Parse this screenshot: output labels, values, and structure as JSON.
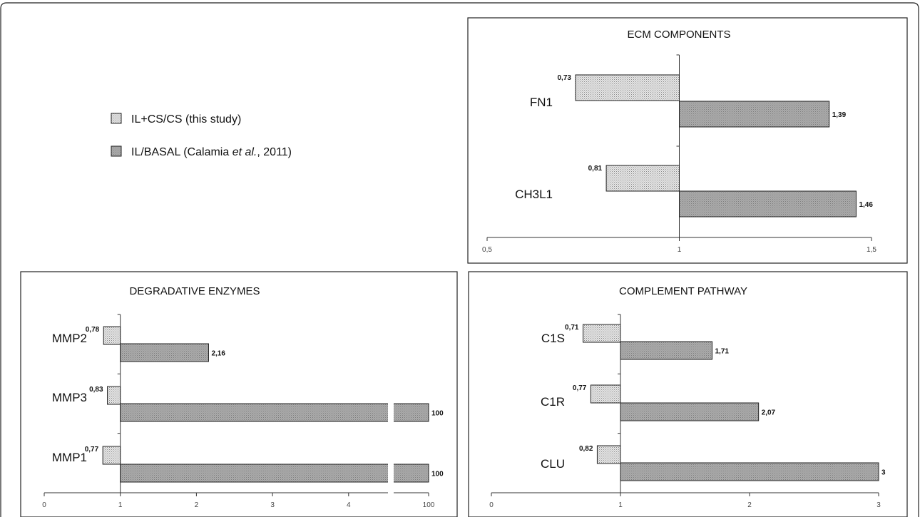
{
  "legend": {
    "items": [
      {
        "text_parts": [
          "IL+CS/CS (this study)"
        ],
        "fill": "light"
      },
      {
        "text_parts": [
          "IL/BASAL (Calamia ",
          "et al.",
          ", 2011)"
        ],
        "fill": "dark"
      }
    ]
  },
  "colors": {
    "light_fill": "#e2e2e2",
    "dark_fill": "#a9a9a9",
    "frame": "#222222"
  },
  "chart_data": [
    {
      "type": "bar",
      "orientation": "horizontal",
      "title": "ECM COMPONENTS",
      "categories": [
        "FN1",
        "CH3L1"
      ],
      "series": [
        {
          "name": "IL+CS/CS (this study)",
          "values": [
            0.73,
            0.81
          ],
          "labels": [
            "0,73",
            "0,81"
          ]
        },
        {
          "name": "IL/BASAL (Calamia et al., 2011)",
          "values": [
            1.39,
            1.46
          ],
          "labels": [
            "1,39",
            "1,46"
          ]
        }
      ],
      "baseline": 1,
      "xlim": [
        0.5,
        1.5
      ],
      "ticks": [
        0.5,
        1,
        1.5
      ],
      "tick_labels": [
        "0,5",
        "1",
        "1,5"
      ]
    },
    {
      "type": "bar",
      "orientation": "horizontal",
      "title": "DEGRADATIVE ENZYMES",
      "categories": [
        "MMP2",
        "MMP3",
        "MMP1"
      ],
      "series": [
        {
          "name": "IL+CS/CS (this study)",
          "values": [
            0.78,
            0.83,
            0.77
          ],
          "labels": [
            "0,78",
            "0,83",
            "0,77"
          ]
        },
        {
          "name": "IL/BASAL (Calamia et al., 2011)",
          "values": [
            2.16,
            100,
            100
          ],
          "labels": [
            "2,16",
            "100",
            "100"
          ]
        }
      ],
      "baseline": 1,
      "xlim": [
        0,
        100
      ],
      "axis_break": [
        4.5,
        100
      ],
      "ticks": [
        0,
        1,
        2,
        3,
        4,
        100
      ],
      "tick_labels": [
        "0",
        "1",
        "2",
        "3",
        "4",
        "100"
      ]
    },
    {
      "type": "bar",
      "orientation": "horizontal",
      "title": "COMPLEMENT PATHWAY",
      "categories": [
        "C1S",
        "C1R",
        "CLU"
      ],
      "series": [
        {
          "name": "IL+CS/CS (this study)",
          "values": [
            0.71,
            0.77,
            0.82
          ],
          "labels": [
            "0,71",
            "0,77",
            "0,82"
          ]
        },
        {
          "name": "IL/BASAL (Calamia et al., 2011)",
          "values": [
            1.71,
            2.07,
            3
          ],
          "labels": [
            "1,71",
            "2,07",
            "3"
          ]
        }
      ],
      "baseline": 1,
      "xlim": [
        0,
        3
      ],
      "ticks": [
        0,
        1,
        2,
        3
      ],
      "tick_labels": [
        "0",
        "1",
        "2",
        "3"
      ]
    }
  ]
}
